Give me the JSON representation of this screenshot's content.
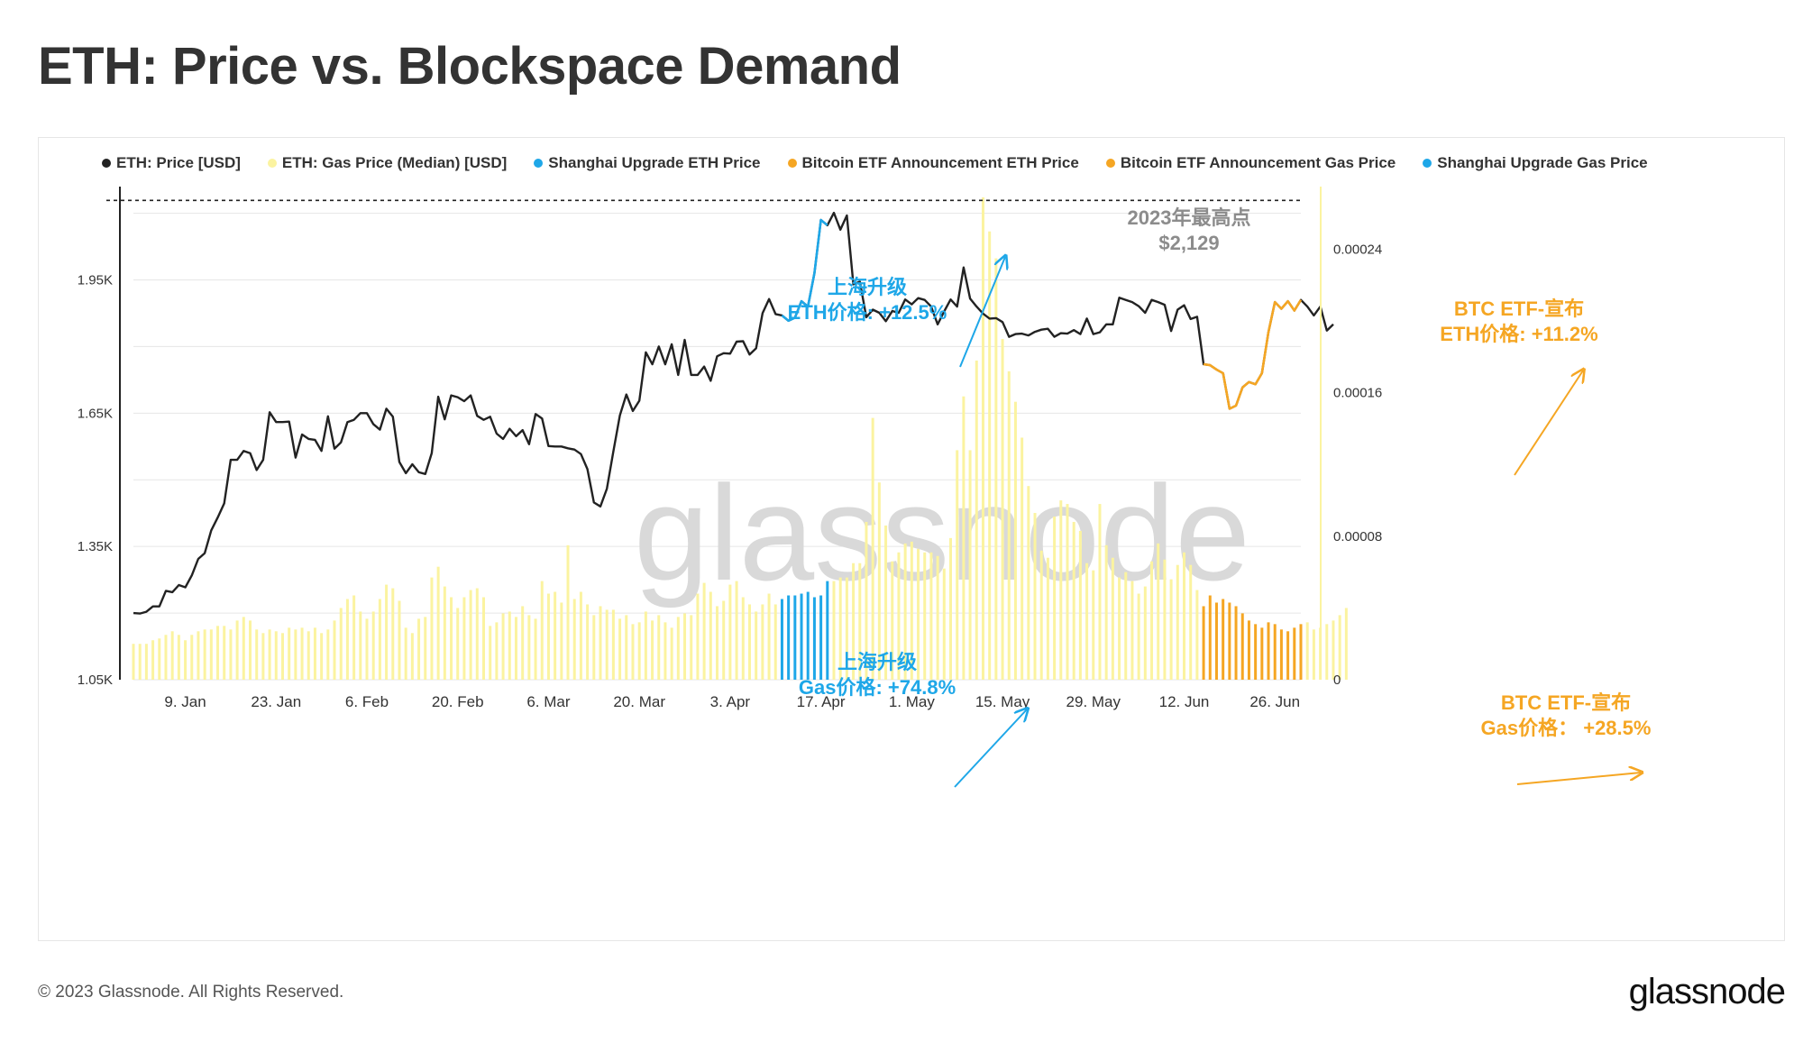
{
  "page": {
    "title": "ETH: Price vs. Blockspace Demand",
    "copyright": "© 2023 Glassnode. All Rights Reserved.",
    "brand": "glassnode",
    "watermark": "glassnode"
  },
  "legend": [
    {
      "label": "ETH: Price [USD]",
      "color": "#222222"
    },
    {
      "label": "ETH: Gas Price (Median) [USD]",
      "color": "#fbf3a0"
    },
    {
      "label": "Shanghai Upgrade ETH Price",
      "color": "#1ea7e8"
    },
    {
      "label": "Bitcoin ETF Announcement ETH Price",
      "color": "#f5a623"
    },
    {
      "label": "Bitcoin ETF Announcement Gas Price",
      "color": "#f5a623"
    },
    {
      "label": "Shanghai Upgrade Gas Price",
      "color": "#1ea7e8"
    }
  ],
  "annotations": {
    "ath_line1": "2023年最高点",
    "ath_line2": "$2,129",
    "shanghai_eth_1": "上海升级",
    "shanghai_eth_2": "ETH价格: +12.5%",
    "shanghai_gas_1": "上海升级",
    "shanghai_gas_2": "Gas价格: +74.8%",
    "btc_eth_1": "BTC ETF-宣布",
    "btc_eth_2": "ETH价格: +11.2%",
    "btc_gas_1": "BTC ETF-宣布",
    "btc_gas_2": "Gas价格： +28.5%"
  },
  "chart_data": {
    "type": "line",
    "x_start": "2023-01-01",
    "x_end": "2023-06-30",
    "x_ticks": [
      "9. Jan",
      "23. Jan",
      "6. Feb",
      "20. Feb",
      "6. Mar",
      "20. Mar",
      "3. Apr",
      "17. Apr",
      "1. May",
      "15. May",
      "29. May",
      "12. Jun",
      "26. Jun"
    ],
    "y_left_ticks": [
      "1.05K",
      "1.35K",
      "1.65K",
      "1.95K"
    ],
    "y_left_range": [
      1050,
      2160
    ],
    "y_right_ticks": [
      "0",
      "0.00008",
      "0.00016",
      "0.00024"
    ],
    "y_right_range": [
      0,
      0.000275
    ],
    "ath_value": 2129,
    "series": [
      {
        "name": "ETH: Price [USD]",
        "color": "#222222",
        "values": [
          1200,
          1199,
          1203,
          1215,
          1215,
          1250,
          1247,
          1263,
          1258,
          1285,
          1322,
          1335,
          1386,
          1415,
          1447,
          1545,
          1545,
          1565,
          1560,
          1522,
          1545,
          1652,
          1630,
          1630,
          1631,
          1550,
          1602,
          1592,
          1590,
          1565,
          1643,
          1570,
          1584,
          1630,
          1635,
          1650,
          1650,
          1625,
          1613,
          1660,
          1642,
          1540,
          1515,
          1535,
          1517,
          1513,
          1560,
          1687,
          1636,
          1690,
          1686,
          1677,
          1690,
          1644,
          1635,
          1642,
          1604,
          1592,
          1615,
          1598,
          1612,
          1580,
          1648,
          1638,
          1576,
          1575,
          1575,
          1571,
          1568,
          1558,
          1524,
          1449,
          1440,
          1480,
          1564,
          1645,
          1692,
          1655,
          1678,
          1787,
          1760,
          1800,
          1760,
          1805,
          1736,
          1815,
          1736,
          1736,
          1755,
          1723,
          1778,
          1785,
          1784,
          1811,
          1812,
          1782,
          1796,
          1875,
          1907,
          1873,
          1870,
          1858,
          1865,
          1902,
          1890,
          1965,
          2085,
          2073,
          2101,
          2063,
          2095,
          1940,
          1946,
          1866,
          1883,
          1876,
          1857,
          1880,
          1876,
          1906,
          1895,
          1909,
          1905,
          1890,
          1850,
          1879,
          1906,
          1890,
          1978,
          1908,
          1890,
          1874,
          1863,
          1864,
          1855,
          1822,
          1828,
          1829,
          1825,
          1833,
          1838,
          1840,
          1822,
          1830,
          1829,
          1837,
          1828,
          1863,
          1828,
          1832,
          1850,
          1850,
          1910,
          1905,
          1900,
          1891,
          1876,
          1905,
          1900,
          1894,
          1835,
          1883,
          1893,
          1862,
          1867,
          1760,
          1758,
          1748,
          1740,
          1660,
          1667,
          1708,
          1720,
          1715,
          1740,
          1832,
          1900,
          1885,
          1902,
          1881,
          1905,
          1890,
          1870,
          1890,
          1836,
          1850
        ]
      },
      {
        "name": "ETH: Gas Price (Median) [USD]",
        "color": "#fbf3a0",
        "values": [
          2e-05,
          2e-05,
          2e-05,
          2.2e-05,
          2.3e-05,
          2.5e-05,
          2.7e-05,
          2.5e-05,
          2.2e-05,
          2.5e-05,
          2.7e-05,
          2.8e-05,
          2.8e-05,
          3e-05,
          3e-05,
          2.8e-05,
          3.3e-05,
          3.5e-05,
          3.3e-05,
          2.8e-05,
          2.6e-05,
          2.8e-05,
          2.7e-05,
          2.6e-05,
          2.9e-05,
          2.8e-05,
          2.9e-05,
          2.7e-05,
          2.9e-05,
          2.6e-05,
          2.8e-05,
          3.3e-05,
          4e-05,
          4.5e-05,
          4.7e-05,
          3.8e-05,
          3.4e-05,
          3.8e-05,
          4.5e-05,
          5.3e-05,
          5.1e-05,
          4.4e-05,
          2.9e-05,
          2.6e-05,
          3.4e-05,
          3.5e-05,
          5.7e-05,
          6.3e-05,
          5.2e-05,
          4.6e-05,
          4e-05,
          4.6e-05,
          5e-05,
          5.1e-05,
          4.6e-05,
          3e-05,
          3.2e-05,
          3.7e-05,
          3.8e-05,
          3.5e-05,
          4.1e-05,
          3.6e-05,
          3.4e-05,
          5.5e-05,
          4.8e-05,
          4.9e-05,
          4.3e-05,
          7.5e-05,
          4.5e-05,
          4.9e-05,
          4.2e-05,
          3.6e-05,
          4.1e-05,
          3.9e-05,
          3.9e-05,
          3.4e-05,
          3.6e-05,
          3.1e-05,
          3.2e-05,
          3.8e-05,
          3.3e-05,
          3.6e-05,
          3.2e-05,
          2.9e-05,
          3.5e-05,
          3.7e-05,
          3.6e-05,
          4.8e-05,
          5.4e-05,
          4.9e-05,
          4.1e-05,
          4.4e-05,
          5.3e-05,
          5.5e-05,
          4.6e-05,
          4.2e-05,
          3.8e-05,
          4.2e-05,
          4.8e-05,
          4.2e-05,
          4.5e-05,
          4.7e-05,
          4.7e-05,
          4.8e-05,
          4.9e-05,
          4.6e-05,
          4.7e-05,
          5.5e-05,
          5.5e-05,
          5.7e-05,
          5.7e-05,
          6.5e-05,
          6.5e-05,
          8.8e-05,
          0.000146,
          0.00011,
          8.6e-05,
          6.6e-05,
          7.1e-05,
          7.6e-05,
          7.7e-05,
          7.3e-05,
          7.1e-05,
          7.1e-05,
          6.9e-05,
          6.2e-05,
          7.9e-05,
          0.000128,
          0.000158,
          0.000128,
          0.000178,
          0.000269,
          0.00025,
          0.000235,
          0.00019,
          0.000172,
          0.000155,
          0.000135,
          0.000108,
          9.3e-05,
          7.2e-05,
          6.8e-05,
          9.1e-05,
          0.0001,
          9.8e-05,
          8.8e-05,
          8.3e-05,
          6.5e-05,
          6.1e-05,
          9.8e-05,
          7.5e-05,
          6.8e-05,
          5.7e-05,
          6e-05,
          5.5e-05,
          4.8e-05,
          5.2e-05,
          6.6e-05,
          7.6e-05,
          6.7e-05,
          5.6e-05,
          6.4e-05,
          7.1e-05,
          6.4e-05,
          5e-05,
          4.1e-05,
          4.7e-05,
          4.3e-05,
          4.5e-05,
          4.3e-05,
          4.1e-05,
          3.7e-05,
          3.3e-05,
          3.1e-05,
          2.9e-05,
          3.2e-05,
          3.1e-05,
          2.8e-05,
          2.7e-05,
          2.9e-05,
          3.1e-05,
          3.2e-05,
          2.8e-05,
          2.9e-05,
          3.1e-05,
          3.3e-05,
          3.6e-05,
          4e-05
        ]
      },
      {
        "name": "Shanghai Upgrade ETH Price",
        "color": "#1ea7e8",
        "x_range": [
          "2023-04-11",
          "2023-04-18"
        ]
      },
      {
        "name": "Shanghai Upgrade Gas Price",
        "color": "#1ea7e8",
        "x_range": [
          "2023-04-11",
          "2023-04-18"
        ]
      },
      {
        "name": "Bitcoin ETF Announcement ETH Price",
        "color": "#f5a623",
        "x_range": [
          "2023-06-15",
          "2023-06-30"
        ]
      },
      {
        "name": "Bitcoin ETF Announcement Gas Price",
        "color": "#f5a623",
        "x_range": [
          "2023-06-15",
          "2023-06-30"
        ]
      }
    ]
  }
}
